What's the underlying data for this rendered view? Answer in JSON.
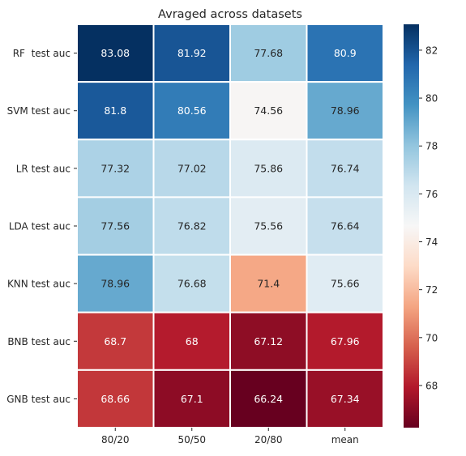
{
  "chart_data": {
    "type": "heatmap",
    "title": "Avraged across datasets",
    "xlabel": "",
    "ylabel": "",
    "x_categories": [
      "80/20",
      "50/50",
      "20/80",
      "mean"
    ],
    "y_categories": [
      "RF  test auc",
      "SVM test auc",
      "LR test auc",
      "LDA test auc",
      "KNN test auc",
      "BNB test auc",
      "GNB test auc"
    ],
    "values": [
      [
        83.08,
        81.92,
        77.68,
        80.9
      ],
      [
        81.8,
        80.56,
        74.56,
        78.96
      ],
      [
        77.32,
        77.02,
        75.86,
        76.74
      ],
      [
        77.56,
        76.82,
        75.56,
        76.64
      ],
      [
        78.96,
        76.68,
        71.4,
        75.66
      ],
      [
        68.7,
        68,
        67.12,
        67.96
      ],
      [
        68.66,
        67.1,
        66.24,
        67.34
      ]
    ],
    "cell_labels": [
      [
        "83.08",
        "81.92",
        "77.68",
        "80.9"
      ],
      [
        "81.8",
        "80.56",
        "74.56",
        "78.96"
      ],
      [
        "77.32",
        "77.02",
        "75.86",
        "76.74"
      ],
      [
        "77.56",
        "76.82",
        "75.56",
        "76.64"
      ],
      [
        "78.96",
        "76.68",
        "71.4",
        "75.66"
      ],
      [
        "68.7",
        "68",
        "67.12",
        "67.96"
      ],
      [
        "68.66",
        "67.1",
        "66.24",
        "67.34"
      ]
    ],
    "colormap": "RdBu",
    "colorbar": {
      "range": [
        66.24,
        83.08
      ],
      "ticks": [
        68,
        70,
        72,
        74,
        76,
        78,
        80,
        82
      ],
      "tick_labels": [
        "68",
        "70",
        "72",
        "74",
        "76",
        "78",
        "80",
        "82"
      ]
    },
    "grid": false
  },
  "colors": {
    "cmap_stops": [
      "#67001f",
      "#b2182b",
      "#d6604d",
      "#f4a582",
      "#fddbc7",
      "#f7f7f7",
      "#d1e5f0",
      "#92c5de",
      "#4393c3",
      "#2166ac",
      "#053061"
    ],
    "cell_separator": "#ffffff",
    "axis_text": "#262626"
  }
}
